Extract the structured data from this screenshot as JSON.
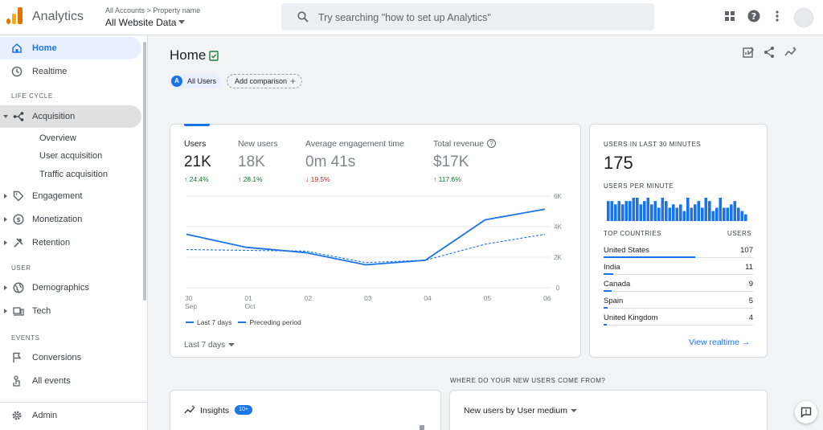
{
  "header": {
    "app_title": "Analytics",
    "breadcrumb": "All Accounts > Property name",
    "property": "All Website Data",
    "search_placeholder": "Try searching \"how to set up Analytics\""
  },
  "sidebar": {
    "home": "Home",
    "realtime": "Realtime",
    "section_lifecycle": "LIFE CYCLE",
    "acquisition": "Acquisition",
    "acq_sub": [
      "Overview",
      "User acquisition",
      "Traffic acquisition"
    ],
    "engagement": "Engagement",
    "monetization": "Monetization",
    "retention": "Retention",
    "section_user": "USER",
    "demographics": "Demographics",
    "tech": "Tech",
    "section_events": "EVENTS",
    "conversions": "Conversions",
    "all_events": "All events",
    "admin": "Admin"
  },
  "page": {
    "title": "Home",
    "chip_users_letter": "A",
    "chip_users": "All Users",
    "add_comparison": "Add comparison"
  },
  "metrics": [
    {
      "label": "Users",
      "value": "21K",
      "delta": "↑ 24.4%",
      "dir": "up"
    },
    {
      "label": "New users",
      "value": "18K",
      "delta": "↑ 28.1%",
      "dir": "up"
    },
    {
      "label": "Average engagement time",
      "value": "0m 41s",
      "delta": "↓ 19.5%",
      "dir": "down"
    },
    {
      "label": "Total revenue",
      "value": "$17K",
      "delta": "↑ 117.6%",
      "dir": "up"
    }
  ],
  "chart_data": {
    "type": "line",
    "x_labels": [
      [
        "30",
        "Sep"
      ],
      [
        "01",
        "Oct"
      ],
      [
        "02",
        ""
      ],
      [
        "03",
        ""
      ],
      [
        "04",
        ""
      ],
      [
        "05",
        ""
      ],
      [
        "06",
        ""
      ]
    ],
    "y_ticks": [
      "6K",
      "4K",
      "2K",
      "0"
    ],
    "ylim": [
      0,
      6000
    ],
    "series": [
      {
        "name": "Last 7 days",
        "values": [
          3500,
          2650,
          2300,
          1500,
          1800,
          4450,
          5150
        ]
      },
      {
        "name": "Preceding period",
        "values": [
          2500,
          2450,
          2400,
          1650,
          1800,
          2850,
          3500
        ]
      }
    ],
    "legend_position": "bottom-left"
  },
  "range_select": "Last 7 days",
  "realtime": {
    "heading": "USERS IN LAST 30 MINUTES",
    "count": "175",
    "per_minute_heading": "USERS PER MINUTE",
    "per_minute": [
      6,
      6,
      5,
      6,
      5,
      6,
      6,
      7,
      7,
      5,
      6,
      7,
      5,
      6,
      4,
      7,
      6,
      4,
      5,
      4,
      5,
      3,
      7,
      4,
      5,
      6,
      4,
      7,
      6,
      3,
      4,
      7,
      4,
      4,
      5,
      6,
      4,
      3,
      2
    ],
    "top_countries_heading": "TOP COUNTRIES",
    "users_heading": "USERS",
    "countries": [
      {
        "name": "United States",
        "value": 107
      },
      {
        "name": "India",
        "value": 11
      },
      {
        "name": "Canada",
        "value": 9
      },
      {
        "name": "Spain",
        "value": 5
      },
      {
        "name": "United Kingdom",
        "value": 4
      }
    ],
    "view_link": "View realtime →"
  },
  "bottom": {
    "where_heading": "WHERE DO YOUR NEW USERS COME FROM?",
    "insights": "Insights",
    "insights_badge": "10+",
    "new_users_by": "New users by User medium"
  },
  "colors": {
    "accent": "#1a73e8",
    "up": "#137333",
    "down": "#c5221f"
  }
}
